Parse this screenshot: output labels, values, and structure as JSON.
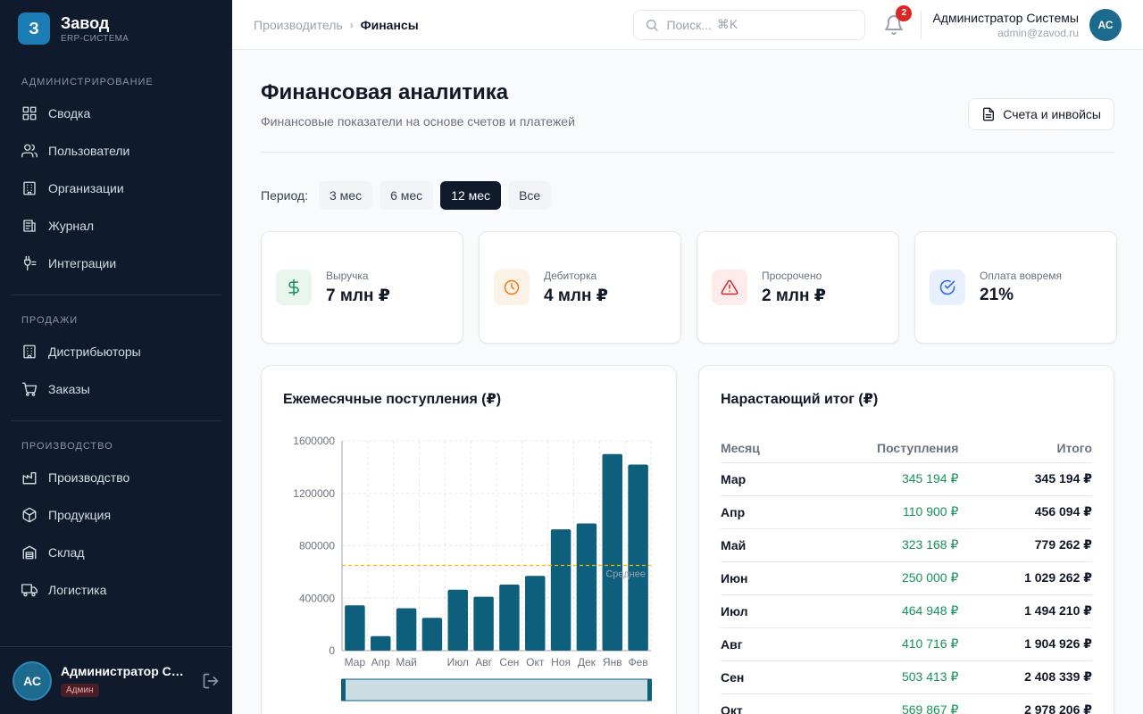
{
  "brand": {
    "logo_letter": "З",
    "title": "Завод",
    "subtitle": "ERP-СИСТЕМА"
  },
  "sidebar": {
    "sections": [
      {
        "title": "АДМИНИСТРИРОВАНИЕ",
        "items": [
          {
            "label": "Сводка",
            "icon": "grid-icon"
          },
          {
            "label": "Пользователи",
            "icon": "users-icon"
          },
          {
            "label": "Организации",
            "icon": "building-icon"
          },
          {
            "label": "Журнал",
            "icon": "log-icon"
          },
          {
            "label": "Интеграции",
            "icon": "plug-icon"
          }
        ]
      },
      {
        "title": "ПРОДАЖИ",
        "items": [
          {
            "label": "Дистрибьюторы",
            "icon": "building-icon"
          },
          {
            "label": "Заказы",
            "icon": "cart-icon"
          }
        ]
      },
      {
        "title": "ПРОИЗВОДСТВО",
        "items": [
          {
            "label": "Производство",
            "icon": "factory-icon"
          },
          {
            "label": "Продукция",
            "icon": "box-icon"
          },
          {
            "label": "Склад",
            "icon": "warehouse-icon"
          },
          {
            "label": "Логистика",
            "icon": "truck-icon"
          }
        ]
      }
    ],
    "user": {
      "initials": "АС",
      "name": "Администратор Системы",
      "role": "Админ"
    }
  },
  "topbar": {
    "breadcrumb": {
      "parent": "Производитель",
      "separator": "›",
      "current": "Финансы"
    },
    "search": {
      "placeholder": "Поиск...",
      "shortcut": "⌘K"
    },
    "notifications_count": "2",
    "user": {
      "name": "Администратор Системы",
      "email": "admin@zavod.ru",
      "initials": "АС"
    }
  },
  "page": {
    "title": "Финансовая аналитика",
    "subtitle": "Финансовые показатели на основе счетов и платежей",
    "invoices_button": "Счета и инвойсы",
    "period_label": "Период:",
    "periods": [
      "3 мес",
      "6 мес",
      "12 мес",
      "Все"
    ],
    "active_period": "12 мес"
  },
  "stats": [
    {
      "label": "Выручка",
      "value": "7 млн ₽",
      "icon": "dollar-icon",
      "color": "#16915a",
      "bg": "#e8f6ee"
    },
    {
      "label": "Дебиторка",
      "value": "4 млн ₽",
      "icon": "clock-icon",
      "color": "#ea7c1c",
      "bg": "#fdf2e6"
    },
    {
      "label": "Просрочено",
      "value": "2 млн ₽",
      "icon": "alert-icon",
      "color": "#dc2626",
      "bg": "#fdeceb"
    },
    {
      "label": "Оплата вовремя",
      "value": "21%",
      "icon": "check-circle-icon",
      "color": "#2563eb",
      "bg": "#e9f0fd"
    }
  ],
  "monthly_panel": {
    "title": "Ежемесячные поступления (₽)",
    "avg_label": "Среднее"
  },
  "cumulative_panel": {
    "title": "Нарастающий итог (₽)",
    "columns": [
      "Месяц",
      "Поступления",
      "Итого"
    ],
    "rows": [
      {
        "month": "Мар",
        "income": "345 194 ₽",
        "total": "345 194 ₽"
      },
      {
        "month": "Апр",
        "income": "110 900 ₽",
        "total": "456 094 ₽"
      },
      {
        "month": "Май",
        "income": "323 168 ₽",
        "total": "779 262 ₽"
      },
      {
        "month": "Июн",
        "income": "250 000 ₽",
        "total": "1 029 262 ₽"
      },
      {
        "month": "Июл",
        "income": "464 948 ₽",
        "total": "1 494 210 ₽"
      },
      {
        "month": "Авг",
        "income": "410 716 ₽",
        "total": "1 904 926 ₽"
      },
      {
        "month": "Сен",
        "income": "503 413 ₽",
        "total": "2 408 339 ₽"
      },
      {
        "month": "Окт",
        "income": "569 867 ₽",
        "total": "2 978 206 ₽"
      }
    ]
  },
  "chart_data": {
    "type": "bar",
    "categories": [
      "Мар",
      "Апр",
      "Май",
      "Июн",
      "Июл",
      "Авг",
      "Сен",
      "Окт",
      "Ноя",
      "Дек",
      "Янв",
      "Фев"
    ],
    "x_tick_labels": [
      "Мар",
      "Апр",
      "Май",
      "",
      "Июл",
      "Авг",
      "Сен",
      "Окт",
      "Ноя",
      "Дек",
      "Янв",
      "Фев"
    ],
    "values": [
      345194,
      110900,
      323168,
      250000,
      464948,
      410716,
      503413,
      569867,
      925000,
      970000,
      1500000,
      1420000
    ],
    "ylim": [
      0,
      1600000
    ],
    "yticks": [
      "0",
      "400000",
      "800000",
      "1200000",
      "1600000"
    ],
    "average": 650000,
    "bar_color": "#0e5f7c",
    "avg_line_color": "#f5b400",
    "grid": true,
    "title": "",
    "xlabel": "",
    "ylabel": ""
  }
}
